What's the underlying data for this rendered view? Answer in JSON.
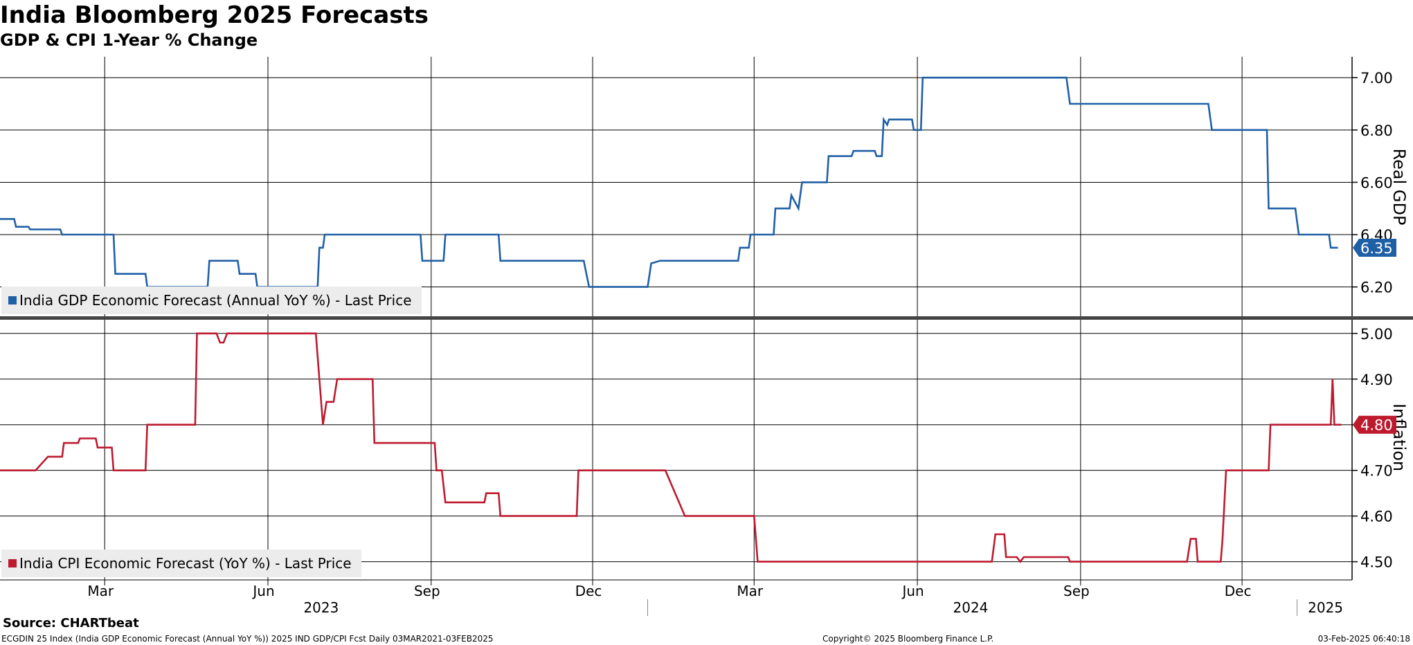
{
  "title": "India Bloomberg 2025 Forecasts",
  "subtitle": "GDP & CPI 1-Year % Change",
  "footer": {
    "source": "Source: CHARTbeat",
    "description": "ECGDIN 25 Index (India GDP Economic Forecast (Annual YoY %)) 2025 IND GDP/CPI Fcst  Daily 03MAR2021-03FEB2025",
    "copyright": "Copyright© 2025 Bloomberg Finance L.P.",
    "timestamp": "03-Feb-2025 06:40:18"
  },
  "colors": {
    "gdp": "#1f5fa6",
    "cpi": "#bd1a2e",
    "grid": "#000000",
    "legend_bg": "#ececec"
  },
  "chart_data": [
    {
      "type": "line",
      "panel": "top",
      "ylabel": "Real GDP",
      "ylim": [
        6.08,
        7.08
      ],
      "yticks": [
        "6.20",
        "6.40",
        "6.60",
        "6.80",
        "7.00"
      ],
      "last_value_label": "6.35",
      "series": [
        {
          "name": "India GDP Economic Forecast (Annual YoY %) - Last Price",
          "color": "#1f5fa6",
          "points": [
            [
              "2023-01-01",
              6.46
            ],
            [
              "2023-01-09",
              6.46
            ],
            [
              "2023-01-10",
              6.43
            ],
            [
              "2023-01-17",
              6.43
            ],
            [
              "2023-01-18",
              6.42
            ],
            [
              "2023-02-04",
              6.42
            ],
            [
              "2023-02-05",
              6.4
            ],
            [
              "2023-03-06",
              6.4
            ],
            [
              "2023-03-07",
              6.25
            ],
            [
              "2023-03-24",
              6.25
            ],
            [
              "2023-03-25",
              6.2
            ],
            [
              "2023-04-28",
              6.2
            ],
            [
              "2023-04-29",
              6.3
            ],
            [
              "2023-05-15",
              6.3
            ],
            [
              "2023-05-16",
              6.25
            ],
            [
              "2023-05-25",
              6.25
            ],
            [
              "2023-05-26",
              6.2
            ],
            [
              "2023-06-29",
              6.2
            ],
            [
              "2023-06-30",
              6.35
            ],
            [
              "2023-07-02",
              6.35
            ],
            [
              "2023-07-03",
              6.4
            ],
            [
              "2023-08-26",
              6.4
            ],
            [
              "2023-08-27",
              6.3
            ],
            [
              "2023-09-08",
              6.3
            ],
            [
              "2023-09-09",
              6.4
            ],
            [
              "2023-10-09",
              6.4
            ],
            [
              "2023-10-10",
              6.3
            ],
            [
              "2023-11-26",
              6.3
            ],
            [
              "2023-11-29",
              6.2
            ],
            [
              "2024-01-01",
              6.2
            ],
            [
              "2024-01-03",
              6.29
            ],
            [
              "2024-01-08",
              6.3
            ],
            [
              "2024-02-21",
              6.3
            ],
            [
              "2024-02-22",
              6.35
            ],
            [
              "2024-02-27",
              6.35
            ],
            [
              "2024-02-28",
              6.4
            ],
            [
              "2024-03-12",
              6.4
            ],
            [
              "2024-03-13",
              6.5
            ],
            [
              "2024-03-21",
              6.5
            ],
            [
              "2024-03-22",
              6.55
            ],
            [
              "2024-03-26",
              6.5
            ],
            [
              "2024-03-28",
              6.6
            ],
            [
              "2024-04-11",
              6.6
            ],
            [
              "2024-04-12",
              6.7
            ],
            [
              "2024-04-25",
              6.7
            ],
            [
              "2024-04-26",
              6.72
            ],
            [
              "2024-05-08",
              6.72
            ],
            [
              "2024-05-09",
              6.7
            ],
            [
              "2024-05-12",
              6.7
            ],
            [
              "2024-05-13",
              6.84
            ],
            [
              "2024-05-15",
              6.82
            ],
            [
              "2024-05-16",
              6.84
            ],
            [
              "2024-05-29",
              6.84
            ],
            [
              "2024-05-30",
              6.8
            ],
            [
              "2024-06-03",
              6.8
            ],
            [
              "2024-06-04",
              7.0
            ],
            [
              "2024-08-24",
              7.0
            ],
            [
              "2024-08-26",
              6.9
            ],
            [
              "2024-11-12",
              6.9
            ],
            [
              "2024-11-14",
              6.8
            ],
            [
              "2024-12-15",
              6.8
            ],
            [
              "2024-12-16",
              6.5
            ],
            [
              "2024-12-31",
              6.5
            ],
            [
              "2025-01-02",
              6.4
            ],
            [
              "2025-01-19",
              6.4
            ],
            [
              "2025-01-20",
              6.35
            ],
            [
              "2025-01-24",
              6.35
            ]
          ]
        }
      ]
    },
    {
      "type": "line",
      "panel": "bottom",
      "ylabel": "Inflation",
      "ylim": [
        4.46,
        5.03
      ],
      "yticks": [
        "4.50",
        "4.60",
        "4.70",
        "4.80",
        "4.90",
        "5.00"
      ],
      "last_value_label": "4.80",
      "series": [
        {
          "name": "India CPI Economic Forecast (YoY %) - Last Price",
          "color": "#bd1a2e",
          "points": [
            [
              "2023-01-01",
              4.7
            ],
            [
              "2023-01-21",
              4.7
            ],
            [
              "2023-01-28",
              4.73
            ],
            [
              "2023-02-05",
              4.73
            ],
            [
              "2023-02-06",
              4.76
            ],
            [
              "2023-02-14",
              4.76
            ],
            [
              "2023-02-15",
              4.77
            ],
            [
              "2023-02-24",
              4.77
            ],
            [
              "2023-02-25",
              4.75
            ],
            [
              "2023-03-05",
              4.75
            ],
            [
              "2023-03-06",
              4.7
            ],
            [
              "2023-03-24",
              4.7
            ],
            [
              "2023-03-25",
              4.8
            ],
            [
              "2023-04-21",
              4.8
            ],
            [
              "2023-04-22",
              5.0
            ],
            [
              "2023-05-03",
              5.0
            ],
            [
              "2023-05-05",
              4.98
            ],
            [
              "2023-05-07",
              4.98
            ],
            [
              "2023-05-09",
              5.0
            ],
            [
              "2023-06-28",
              5.0
            ],
            [
              "2023-07-01",
              4.85
            ],
            [
              "2023-07-02",
              4.8
            ],
            [
              "2023-07-04",
              4.85
            ],
            [
              "2023-07-08",
              4.85
            ],
            [
              "2023-07-10",
              4.9
            ],
            [
              "2023-07-30",
              4.9
            ],
            [
              "2023-07-31",
              4.76
            ],
            [
              "2023-09-03",
              4.76
            ],
            [
              "2023-09-04",
              4.7
            ],
            [
              "2023-09-07",
              4.7
            ],
            [
              "2023-09-09",
              4.63
            ],
            [
              "2023-10-01",
              4.63
            ],
            [
              "2023-10-02",
              4.65
            ],
            [
              "2023-10-09",
              4.65
            ],
            [
              "2023-10-10",
              4.6
            ],
            [
              "2023-11-22",
              4.6
            ],
            [
              "2023-11-23",
              4.7
            ],
            [
              "2024-01-11",
              4.7
            ],
            [
              "2024-01-22",
              4.6
            ],
            [
              "2024-03-01",
              4.6
            ],
            [
              "2024-03-03",
              4.5
            ],
            [
              "2024-07-13",
              4.5
            ],
            [
              "2024-07-15",
              4.56
            ],
            [
              "2024-07-20",
              4.56
            ],
            [
              "2024-07-21",
              4.51
            ],
            [
              "2024-07-27",
              4.51
            ],
            [
              "2024-07-29",
              4.5
            ],
            [
              "2024-07-31",
              4.51
            ],
            [
              "2024-08-25",
              4.51
            ],
            [
              "2024-08-26",
              4.5
            ],
            [
              "2024-10-31",
              4.5
            ],
            [
              "2024-11-02",
              4.55
            ],
            [
              "2024-11-05",
              4.55
            ],
            [
              "2024-11-06",
              4.5
            ],
            [
              "2024-11-19",
              4.5
            ],
            [
              "2024-11-20",
              4.55
            ],
            [
              "2024-11-22",
              4.7
            ],
            [
              "2024-12-16",
              4.7
            ],
            [
              "2024-12-17",
              4.8
            ],
            [
              "2025-01-20",
              4.8
            ],
            [
              "2025-01-21",
              4.9
            ],
            [
              "2025-01-22",
              4.8
            ],
            [
              "2025-01-26",
              4.8
            ]
          ]
        }
      ]
    }
  ],
  "x_axis": {
    "months": [
      {
        "label": "Mar",
        "date": "2023-03-01"
      },
      {
        "label": "Jun",
        "date": "2023-06-01"
      },
      {
        "label": "Sep",
        "date": "2023-09-01"
      },
      {
        "label": "Dec",
        "date": "2023-12-01"
      },
      {
        "label": "Mar",
        "date": "2024-03-01"
      },
      {
        "label": "Jun",
        "date": "2024-06-01"
      },
      {
        "label": "Sep",
        "date": "2024-09-01"
      },
      {
        "label": "Dec",
        "date": "2024-12-01"
      }
    ],
    "years": [
      {
        "label": "2023",
        "date": "2023-07-01"
      },
      {
        "label": "2024",
        "date": "2024-07-01"
      },
      {
        "label": "2025",
        "date": "2025-01-17"
      }
    ],
    "range": [
      "2023-01-01",
      "2025-02-01"
    ]
  }
}
